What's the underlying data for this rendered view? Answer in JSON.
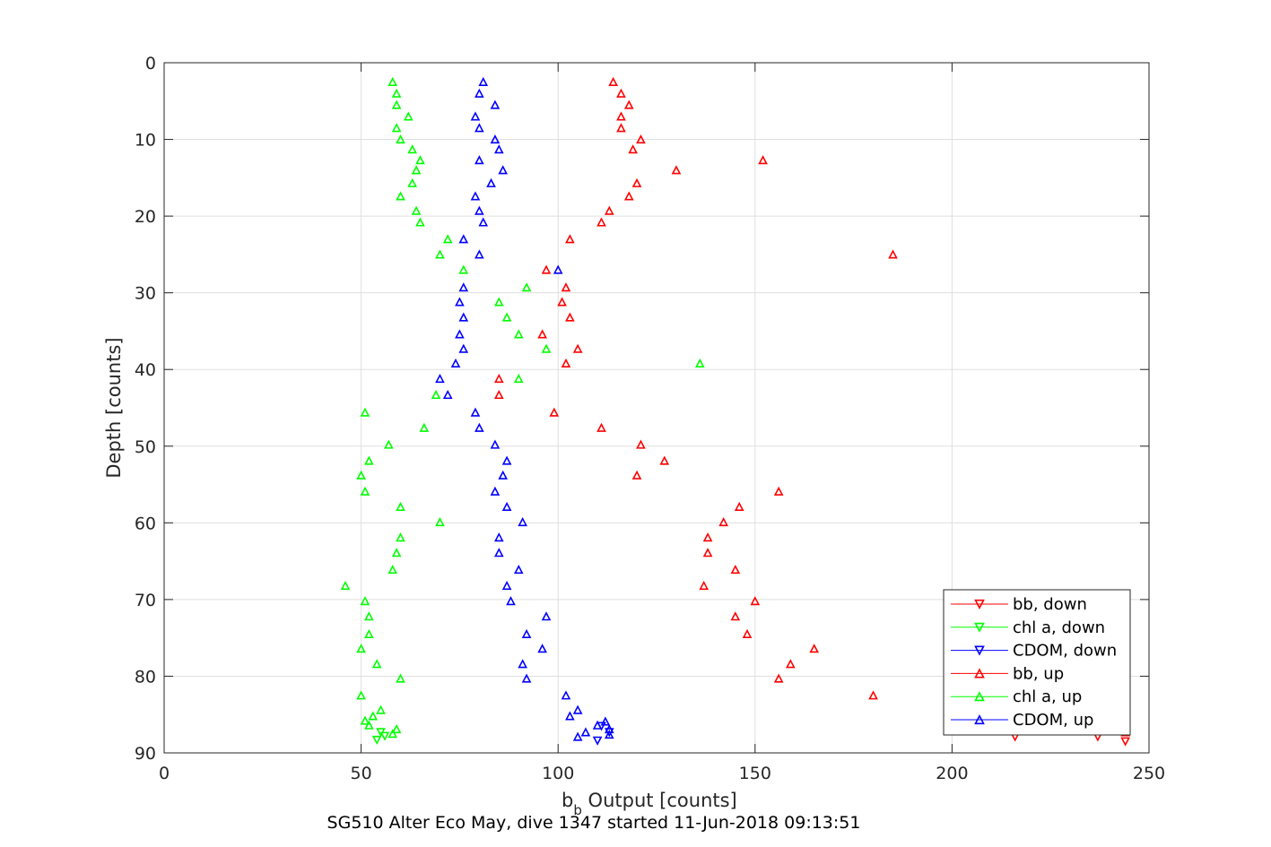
{
  "chart_data": {
    "type": "scatter",
    "xlabel_main": "b",
    "xlabel_sub": "b",
    "xlabel_rest": " Output [counts]",
    "ylabel": "Depth [counts]",
    "caption": "SG510 Alter Eco May, dive 1347 started 11-Jun-2018 09:13:51",
    "xlim": [
      0,
      250
    ],
    "ylim": [
      0,
      90
    ],
    "y_reversed": true,
    "grid": true,
    "xticks": [
      0,
      50,
      100,
      150,
      200,
      250
    ],
    "yticks": [
      0,
      10,
      20,
      30,
      40,
      50,
      60,
      70,
      80,
      90
    ],
    "legend_position": "bottom-right",
    "series": [
      {
        "name": "bb, down",
        "color": "#ff0000",
        "marker": "triangle-down",
        "points": [
          [
            216,
            87.9
          ],
          [
            237,
            87.9
          ],
          [
            244,
            88.5
          ]
        ]
      },
      {
        "name": "chl a, down",
        "color": "#00ff00",
        "marker": "triangle-down",
        "points": [
          [
            55,
            87.3
          ],
          [
            56,
            87.8
          ],
          [
            54,
            88.3
          ]
        ]
      },
      {
        "name": "CDOM, down",
        "color": "#0000ff",
        "marker": "triangle-down",
        "points": [
          [
            111,
            86.5
          ],
          [
            113,
            87.3
          ],
          [
            110,
            88.4
          ]
        ]
      },
      {
        "name": "bb, up",
        "color": "#ff0000",
        "marker": "triangle-up",
        "points": [
          [
            114,
            2.5
          ],
          [
            116,
            4
          ],
          [
            118,
            5.5
          ],
          [
            116,
            7
          ],
          [
            116,
            8.5
          ],
          [
            121,
            10
          ],
          [
            119,
            11.3
          ],
          [
            152,
            12.7
          ],
          [
            130,
            14
          ],
          [
            120,
            15.7
          ],
          [
            118,
            17.4
          ],
          [
            113,
            19.3
          ],
          [
            111,
            20.8
          ],
          [
            103,
            23
          ],
          [
            185,
            25
          ],
          [
            97,
            27
          ],
          [
            102,
            29.3
          ],
          [
            101,
            31.2
          ],
          [
            103,
            33.2
          ],
          [
            96,
            35.4
          ],
          [
            105,
            37.3
          ],
          [
            102,
            39.2
          ],
          [
            85,
            41.2
          ],
          [
            85,
            43.3
          ],
          [
            99,
            45.6
          ],
          [
            111,
            47.6
          ],
          [
            121,
            49.8
          ],
          [
            127,
            51.9
          ],
          [
            120,
            53.8
          ],
          [
            156,
            55.9
          ],
          [
            146,
            57.9
          ],
          [
            142,
            59.9
          ],
          [
            138,
            61.9
          ],
          [
            138,
            63.9
          ],
          [
            145,
            66.1
          ],
          [
            137,
            68.2
          ],
          [
            150,
            70.2
          ],
          [
            145,
            72.2
          ],
          [
            148,
            74.5
          ],
          [
            165,
            76.4
          ],
          [
            159,
            78.4
          ],
          [
            156,
            80.3
          ],
          [
            180,
            82.5
          ],
          [
            232,
            86.8
          ],
          [
            244,
            87.3
          ]
        ]
      },
      {
        "name": "chl a, up",
        "color": "#00ff00",
        "marker": "triangle-up",
        "points": [
          [
            58,
            2.5
          ],
          [
            59,
            4
          ],
          [
            59,
            5.5
          ],
          [
            62,
            7
          ],
          [
            59,
            8.5
          ],
          [
            60,
            10
          ],
          [
            63,
            11.3
          ],
          [
            65,
            12.7
          ],
          [
            64,
            14
          ],
          [
            63,
            15.7
          ],
          [
            60,
            17.4
          ],
          [
            64,
            19.3
          ],
          [
            65,
            20.8
          ],
          [
            72,
            23
          ],
          [
            70,
            25
          ],
          [
            76,
            27
          ],
          [
            92,
            29.3
          ],
          [
            85,
            31.2
          ],
          [
            87,
            33.2
          ],
          [
            90,
            35.4
          ],
          [
            97,
            37.3
          ],
          [
            136,
            39.2
          ],
          [
            90,
            41.2
          ],
          [
            69,
            43.3
          ],
          [
            51,
            45.6
          ],
          [
            66,
            47.6
          ],
          [
            57,
            49.8
          ],
          [
            52,
            51.9
          ],
          [
            50,
            53.8
          ],
          [
            51,
            55.9
          ],
          [
            60,
            57.9
          ],
          [
            70,
            59.9
          ],
          [
            60,
            61.9
          ],
          [
            59,
            63.9
          ],
          [
            58,
            66.1
          ],
          [
            46,
            68.2
          ],
          [
            51,
            70.2
          ],
          [
            52,
            72.2
          ],
          [
            52,
            74.5
          ],
          [
            50,
            76.4
          ],
          [
            54,
            78.4
          ],
          [
            60,
            80.3
          ],
          [
            50,
            82.5
          ],
          [
            55,
            84.4
          ],
          [
            53,
            85.2
          ],
          [
            51,
            85.8
          ],
          [
            52,
            86.4
          ],
          [
            59,
            86.9
          ],
          [
            58,
            87.5
          ]
        ]
      },
      {
        "name": "CDOM, up",
        "color": "#0000ff",
        "marker": "triangle-up",
        "points": [
          [
            81,
            2.5
          ],
          [
            80,
            4
          ],
          [
            84,
            5.5
          ],
          [
            79,
            7
          ],
          [
            80,
            8.5
          ],
          [
            84,
            10
          ],
          [
            85,
            11.3
          ],
          [
            80,
            12.7
          ],
          [
            86,
            14
          ],
          [
            83,
            15.7
          ],
          [
            79,
            17.4
          ],
          [
            80,
            19.3
          ],
          [
            81,
            20.8
          ],
          [
            76,
            23
          ],
          [
            80,
            25
          ],
          [
            100,
            27
          ],
          [
            76,
            29.3
          ],
          [
            75,
            31.2
          ],
          [
            76,
            33.2
          ],
          [
            75,
            35.4
          ],
          [
            76,
            37.3
          ],
          [
            74,
            39.2
          ],
          [
            70,
            41.2
          ],
          [
            72,
            43.3
          ],
          [
            79,
            45.6
          ],
          [
            80,
            47.6
          ],
          [
            84,
            49.8
          ],
          [
            87,
            51.9
          ],
          [
            86,
            53.8
          ],
          [
            84,
            55.9
          ],
          [
            87,
            57.9
          ],
          [
            91,
            59.9
          ],
          [
            85,
            61.9
          ],
          [
            85,
            63.9
          ],
          [
            90,
            66.1
          ],
          [
            87,
            68.2
          ],
          [
            88,
            70.2
          ],
          [
            97,
            72.2
          ],
          [
            92,
            74.5
          ],
          [
            96,
            76.4
          ],
          [
            91,
            78.4
          ],
          [
            92,
            80.3
          ],
          [
            102,
            82.5
          ],
          [
            105,
            84.4
          ],
          [
            103,
            85.2
          ],
          [
            112,
            85.9
          ],
          [
            110,
            86.4
          ],
          [
            113,
            86.9
          ],
          [
            107,
            87.3
          ],
          [
            113,
            87.6
          ],
          [
            105,
            87.9
          ]
        ]
      }
    ]
  }
}
